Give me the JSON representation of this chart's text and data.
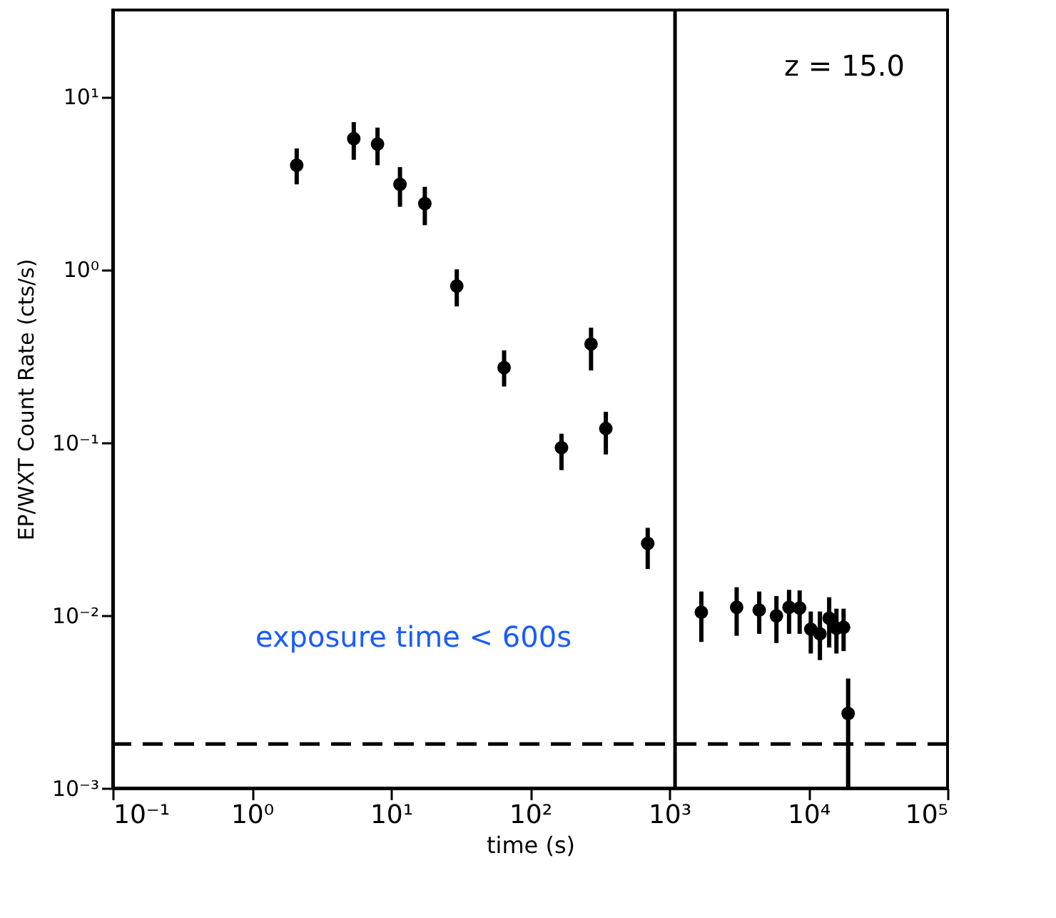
{
  "chart_data": {
    "type": "scatter",
    "xlabel": "time (s)",
    "ylabel": "EP/WXT Count Rate (cts/s)",
    "log": "xy",
    "marker": "circle",
    "grid": false,
    "xlim": [
      0.1,
      100000
    ],
    "ylim": [
      0.001,
      31.6
    ],
    "xticks": [
      {
        "value": 0.1,
        "label": "10⁻¹"
      },
      {
        "value": 1,
        "label": "10⁰"
      },
      {
        "value": 10,
        "label": "10¹"
      },
      {
        "value": 100,
        "label": "10²"
      },
      {
        "value": 1000,
        "label": "10³"
      },
      {
        "value": 10000,
        "label": "10⁴"
      },
      {
        "value": 100000,
        "label": "10⁵"
      }
    ],
    "yticks": [
      {
        "value": 0.001,
        "label": "10⁻³"
      },
      {
        "value": 0.01,
        "label": "10⁻²"
      },
      {
        "value": 0.1,
        "label": "10⁻¹"
      },
      {
        "value": 1,
        "label": "10⁰"
      },
      {
        "value": 10,
        "label": "10¹"
      }
    ],
    "series": [
      {
        "color": "#000000",
        "x": [
          2.1,
          5.4,
          8.0,
          11.6,
          17.5,
          29.7,
          65,
          168,
          274,
          350,
          700,
          1700,
          3050,
          4430,
          5890,
          7260,
          8650,
          10400,
          12100,
          14100,
          15900,
          17900,
          19300
        ],
        "values": [
          4.0,
          5.7,
          5.3,
          3.1,
          2.4,
          0.8,
          0.27,
          0.093,
          0.37,
          0.12,
          0.026,
          0.0104,
          0.0111,
          0.0107,
          0.0099,
          0.0111,
          0.011,
          0.0083,
          0.0078,
          0.0096,
          0.0084,
          0.0085,
          0.0027
        ],
        "errors": [
          [
            3.1,
            5.0
          ],
          [
            4.3,
            7.1
          ],
          [
            4.0,
            6.6
          ],
          [
            2.3,
            3.9
          ],
          [
            1.8,
            3.0
          ],
          [
            0.61,
            1.0
          ],
          [
            0.21,
            0.34
          ],
          [
            0.069,
            0.112
          ],
          [
            0.26,
            0.46
          ],
          [
            0.085,
            0.15
          ],
          [
            0.0185,
            0.032
          ],
          [
            0.007,
            0.0137
          ],
          [
            0.0076,
            0.0145
          ],
          [
            0.0078,
            0.0137
          ],
          [
            0.0069,
            0.0129
          ],
          [
            0.0078,
            0.014
          ],
          [
            0.0078,
            0.0139
          ],
          [
            0.006,
            0.0105
          ],
          [
            0.0055,
            0.0105
          ],
          [
            0.0065,
            0.0127
          ],
          [
            0.006,
            0.0109
          ],
          [
            0.0062,
            0.0109
          ],
          [
            0.001,
            0.0043
          ]
        ]
      }
    ],
    "ref_lines": [
      {
        "axis": "x",
        "value": 1100,
        "line_style": "solid"
      },
      {
        "axis": "y",
        "value": 0.0018,
        "line_style": "dashed"
      }
    ],
    "annotations": [
      "z = 15.0",
      "exposure time < 600s"
    ]
  }
}
